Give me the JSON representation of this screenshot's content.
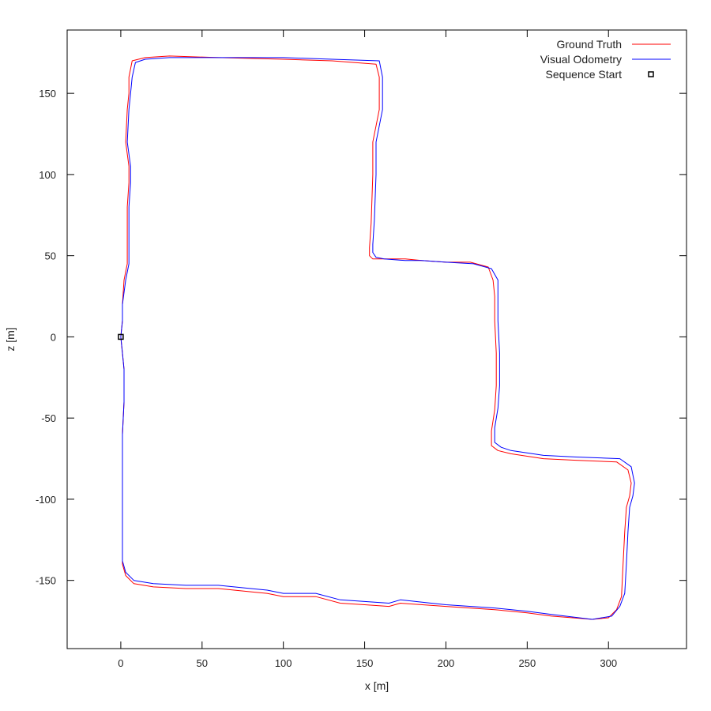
{
  "chart_data": {
    "type": "line",
    "xlabel": "x [m]",
    "ylabel": "z [m]",
    "xlim": [
      -33,
      348
    ],
    "ylim": [
      -192,
      189
    ],
    "grid": false,
    "legend_position": "top-right",
    "x_ticks": [
      {
        "value": 0,
        "label": "0"
      },
      {
        "value": 50,
        "label": "50"
      },
      {
        "value": 100,
        "label": "100"
      },
      {
        "value": 150,
        "label": "150"
      },
      {
        "value": 200,
        "label": "200"
      },
      {
        "value": 250,
        "label": "250"
      },
      {
        "value": 300,
        "label": "300"
      }
    ],
    "y_ticks": [
      {
        "value": -150,
        "label": "-150"
      },
      {
        "value": -100,
        "label": "-100"
      },
      {
        "value": -50,
        "label": "-50"
      },
      {
        "value": 0,
        "label": "0"
      },
      {
        "value": 50,
        "label": "50"
      },
      {
        "value": 100,
        "label": "100"
      },
      {
        "value": 150,
        "label": "150"
      }
    ],
    "legend": [
      {
        "label": "Ground Truth",
        "kind": "line",
        "color": "#ff0000"
      },
      {
        "label": "Visual Odometry",
        "kind": "line",
        "color": "#0000ff"
      },
      {
        "label": "Sequence Start",
        "kind": "point",
        "color": "#000000"
      }
    ],
    "series": [
      {
        "name": "Ground Truth",
        "color": "#ff0000",
        "points": [
          [
            0,
            0
          ],
          [
            1,
            -10
          ],
          [
            2,
            -20
          ],
          [
            2,
            -40
          ],
          [
            1,
            -60
          ],
          [
            1,
            -100
          ],
          [
            1,
            -140
          ],
          [
            3,
            -147
          ],
          [
            8,
            -152
          ],
          [
            20,
            -154
          ],
          [
            40,
            -155
          ],
          [
            60,
            -155
          ],
          [
            80,
            -157
          ],
          [
            90,
            -158
          ],
          [
            100,
            -160
          ],
          [
            120,
            -160
          ],
          [
            135,
            -164
          ],
          [
            150,
            -165
          ],
          [
            165,
            -166
          ],
          [
            172,
            -164
          ],
          [
            200,
            -166
          ],
          [
            230,
            -168
          ],
          [
            250,
            -170
          ],
          [
            265,
            -172
          ],
          [
            290,
            -174
          ],
          [
            300,
            -173
          ],
          [
            305,
            -168
          ],
          [
            308,
            -160
          ],
          [
            309,
            -140
          ],
          [
            310,
            -120
          ],
          [
            311,
            -105
          ],
          [
            313,
            -98
          ],
          [
            314,
            -90
          ],
          [
            312,
            -82
          ],
          [
            305,
            -77
          ],
          [
            280,
            -76
          ],
          [
            260,
            -75
          ],
          [
            240,
            -72
          ],
          [
            232,
            -70
          ],
          [
            228,
            -67
          ],
          [
            228,
            -58
          ],
          [
            230,
            -45
          ],
          [
            231,
            -30
          ],
          [
            231,
            -10
          ],
          [
            230,
            10
          ],
          [
            230,
            25
          ],
          [
            229,
            35
          ],
          [
            226,
            43
          ],
          [
            215,
            46
          ],
          [
            200,
            46
          ],
          [
            185,
            47
          ],
          [
            175,
            48
          ],
          [
            160,
            48
          ],
          [
            155,
            48
          ],
          [
            153,
            50
          ],
          [
            153,
            55
          ],
          [
            154,
            70
          ],
          [
            155,
            100
          ],
          [
            155,
            120
          ],
          [
            157,
            130
          ],
          [
            159,
            140
          ],
          [
            159,
            160
          ],
          [
            157,
            168
          ],
          [
            130,
            170
          ],
          [
            100,
            171
          ],
          [
            60,
            172
          ],
          [
            30,
            173
          ],
          [
            15,
            172
          ],
          [
            7,
            170
          ],
          [
            5,
            160
          ],
          [
            5,
            150
          ],
          [
            4,
            140
          ],
          [
            3,
            120
          ],
          [
            5,
            105
          ],
          [
            5,
            95
          ],
          [
            4,
            80
          ],
          [
            4,
            60
          ],
          [
            4,
            45
          ],
          [
            2,
            35
          ],
          [
            1,
            20
          ],
          [
            1,
            10
          ],
          [
            0,
            0
          ]
        ]
      },
      {
        "name": "Visual Odometry",
        "color": "#0000ff",
        "points": [
          [
            0,
            0
          ],
          [
            1,
            -10
          ],
          [
            2,
            -20
          ],
          [
            2,
            -40
          ],
          [
            1,
            -60
          ],
          [
            1,
            -100
          ],
          [
            1,
            -138
          ],
          [
            3,
            -145
          ],
          [
            8,
            -150
          ],
          [
            20,
            -152
          ],
          [
            40,
            -153
          ],
          [
            60,
            -153
          ],
          [
            80,
            -155
          ],
          [
            90,
            -156
          ],
          [
            100,
            -158
          ],
          [
            120,
            -158
          ],
          [
            135,
            -162
          ],
          [
            150,
            -163
          ],
          [
            165,
            -164
          ],
          [
            172,
            -162
          ],
          [
            200,
            -165
          ],
          [
            230,
            -167
          ],
          [
            250,
            -169
          ],
          [
            265,
            -171
          ],
          [
            290,
            -174
          ],
          [
            302,
            -172
          ],
          [
            307,
            -166
          ],
          [
            310,
            -158
          ],
          [
            311,
            -140
          ],
          [
            312,
            -120
          ],
          [
            313,
            -105
          ],
          [
            315,
            -98
          ],
          [
            316,
            -90
          ],
          [
            314,
            -80
          ],
          [
            307,
            -75
          ],
          [
            280,
            -74
          ],
          [
            260,
            -73
          ],
          [
            240,
            -70
          ],
          [
            234,
            -68
          ],
          [
            230,
            -65
          ],
          [
            230,
            -56
          ],
          [
            232,
            -44
          ],
          [
            233,
            -30
          ],
          [
            233,
            -10
          ],
          [
            232,
            10
          ],
          [
            232,
            25
          ],
          [
            232,
            35
          ],
          [
            228,
            42
          ],
          [
            217,
            45
          ],
          [
            200,
            46
          ],
          [
            185,
            47
          ],
          [
            175,
            47
          ],
          [
            162,
            48
          ],
          [
            157,
            49
          ],
          [
            155,
            52
          ],
          [
            155,
            57
          ],
          [
            156,
            72
          ],
          [
            157,
            100
          ],
          [
            157,
            120
          ],
          [
            159,
            130
          ],
          [
            161,
            140
          ],
          [
            161,
            160
          ],
          [
            159,
            170
          ],
          [
            130,
            171
          ],
          [
            100,
            172
          ],
          [
            60,
            172
          ],
          [
            30,
            172
          ],
          [
            15,
            171
          ],
          [
            9,
            169
          ],
          [
            7,
            160
          ],
          [
            6,
            150
          ],
          [
            5,
            140
          ],
          [
            4,
            120
          ],
          [
            6,
            105
          ],
          [
            6,
            95
          ],
          [
            5,
            80
          ],
          [
            5,
            60
          ],
          [
            5,
            45
          ],
          [
            3,
            35
          ],
          [
            1,
            20
          ],
          [
            1,
            10
          ],
          [
            0,
            0
          ]
        ]
      }
    ],
    "start_point": {
      "name": "Sequence Start",
      "x": 0,
      "z": 0
    }
  }
}
